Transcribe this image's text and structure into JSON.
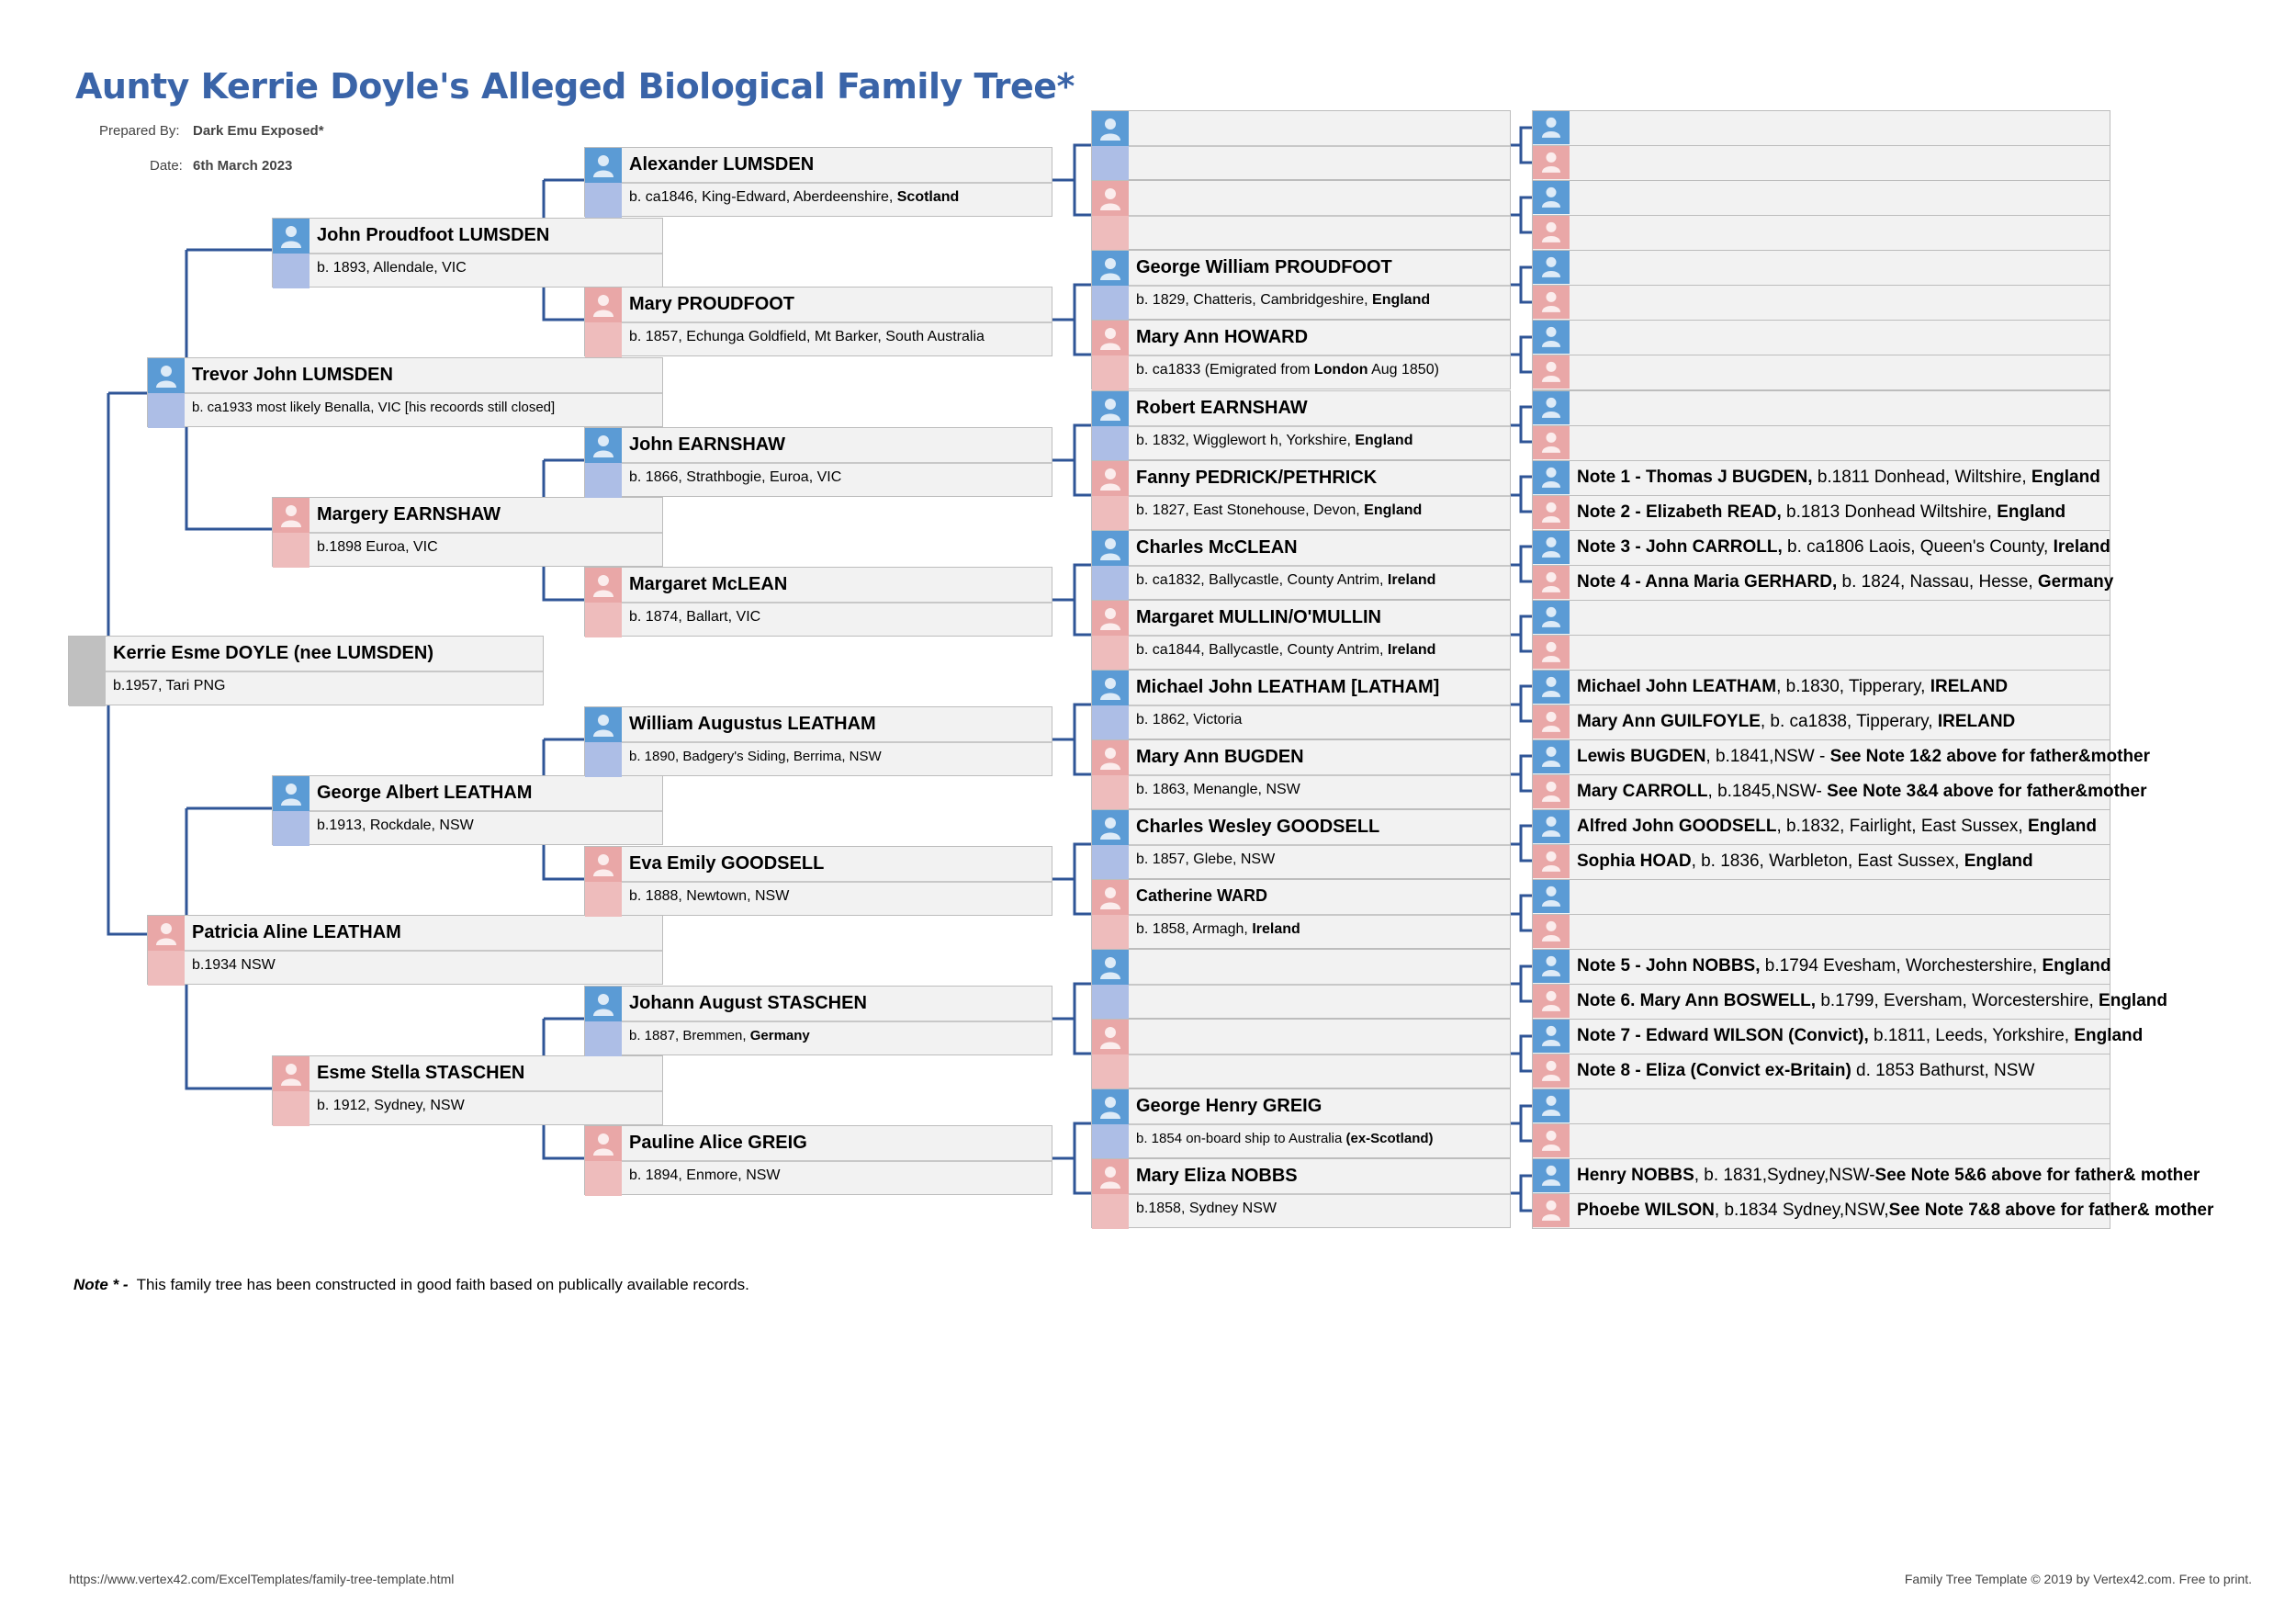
{
  "title": "Aunty Kerrie Doyle's Alleged Biological Family Tree*",
  "prepared_by_label": "Prepared By:",
  "prepared_by": "Dark Emu Exposed*",
  "date_label": "Date:",
  "date": "6th March 2023",
  "people": {
    "kerrie": {
      "name": "Kerrie Esme DOYLE (nee LUMSDEN)",
      "birth": "b.1957, Tari PNG"
    },
    "trevor": {
      "name": "Trevor John LUMSDEN",
      "birth": "b. ca1933 most likely Benalla, VIC [his recoords still closed]"
    },
    "patricia": {
      "name": "Patricia Aline LEATHAM",
      "birth": "b.1934 NSW"
    },
    "john_pl": {
      "name": "John Proudfoot LUMSDEN",
      "birth": "b. 1893, Allendale, VIC"
    },
    "margery": {
      "name": "Margery EARNSHAW",
      "birth": "b.1898 Euroa, VIC"
    },
    "george_al": {
      "name": "George Albert LEATHAM",
      "birth": "b.1913, Rockdale, NSW"
    },
    "esme": {
      "name": "Esme Stella STASCHEN",
      "birth": "b. 1912, Sydney, NSW"
    },
    "alexander": {
      "name": "Alexander LUMSDEN",
      "birth_pre": "b. ca1846, King-Edward, Aberdeenshire, ",
      "birth_bold": "Scotland"
    },
    "mary_p": {
      "name": "Mary PROUDFOOT",
      "birth": "b. 1857, Echunga Goldfield, Mt Barker, South Australia"
    },
    "john_e": {
      "name": "John EARNSHAW",
      "birth": "b. 1866, Strathbogie, Euroa, VIC"
    },
    "margaret_m": {
      "name": "Margaret McLEAN",
      "birth": "b. 1874, Ballart, VIC"
    },
    "william": {
      "name": "William Augustus LEATHAM",
      "birth": "b. 1890, Badgery's Siding, Berrima, NSW"
    },
    "eva": {
      "name": "Eva Emily GOODSELL",
      "birth": "b. 1888, Newtown, NSW"
    },
    "johann": {
      "name": "Johann August STASCHEN",
      "birth_pre": "b. 1887, Bremmen, ",
      "birth_bold": "Germany"
    },
    "pauline": {
      "name": "Pauline Alice GREIG",
      "birth": "b. 1894, Enmore, NSW"
    },
    "george_wp": {
      "name": "George William PROUDFOOT",
      "birth_pre": "b. 1829, Chatteris, Cambridgeshire, ",
      "birth_bold": "England"
    },
    "mary_ah": {
      "name": "Mary Ann HOWARD",
      "birth_pre": "b. ca1833 (Emigrated from ",
      "birth_bold": "London",
      "birth_post": " Aug 1850)"
    },
    "robert": {
      "name": "Robert EARNSHAW",
      "birth_pre": "b. 1832, Wigglewort h, Yorkshire, ",
      "birth_bold": "England"
    },
    "fanny": {
      "name": "Fanny PEDRICK/PETHRICK",
      "birth_pre": "b. 1827, East Stonehouse, Devon, ",
      "birth_bold": "England"
    },
    "charles_m": {
      "name": "Charles McCLEAN",
      "birth_pre": "b. ca1832, Ballycastle, County Antrim, ",
      "birth_bold": "Ireland"
    },
    "margaret_mu": {
      "name": "Margaret MULLIN/O'MULLIN",
      "birth_pre": "b. ca1844, Ballycastle, County Antrim, ",
      "birth_bold": "Ireland"
    },
    "michael": {
      "name": "Michael John LEATHAM [LATHAM]",
      "birth": "b. 1862, Victoria"
    },
    "mary_ab": {
      "name": "Mary Ann BUGDEN",
      "birth": "b. 1863, Menangle, NSW"
    },
    "charles_wg": {
      "name": "Charles Wesley  GOODSELL",
      "birth": "b. 1857, Glebe, NSW"
    },
    "catherine": {
      "name": "Catherine WARD",
      "birth_pre": "b. 1858, Armagh, ",
      "birth_bold": "Ireland"
    },
    "george_hg": {
      "name": "George Henry GREIG",
      "birth_pre": "b. 1854 on-board ship to Australia ",
      "birth_bold": "(ex-Scotland)"
    },
    "mary_en": {
      "name": "Mary Eliza NOBBS",
      "birth": "b.1858, Sydney NSW"
    }
  },
  "notes": {
    "n1": {
      "bold": "Note 1 - Thomas J BUGDEN,",
      "text": " b.1811 Donhead, Wiltshire, ",
      "bold2": "England"
    },
    "n2": {
      "bold": "Note 2 - Elizabeth READ,",
      "text": " b.1813 Donhead Wiltshire, ",
      "bold2": "England"
    },
    "n3": {
      "bold": "Note 3 - John CARROLL,",
      "text": " b. ca1806 Laois, Queen's County, ",
      "bold2": "Ireland"
    },
    "n4": {
      "bold": "Note 4 - Anna Maria GERHARD,",
      "text": " b. 1824, Nassau, Hesse, ",
      "bold2": "Germany"
    },
    "mjl": {
      "bold": "Michael John LEATHAM",
      "text": ", b.1830, Tipperary, ",
      "bold2": "IRELAND"
    },
    "mag": {
      "bold": "Mary Ann GUILFOYLE",
      "text": ", b. ca1838, Tipperary, ",
      "bold2": "IRELAND"
    },
    "lb": {
      "bold": "Lewis BUGDEN",
      "text": ", b.1841,NSW - ",
      "bold2": "See Note 1&2 above for father&mother"
    },
    "mc": {
      "bold": "Mary CARROLL",
      "text": ", b.1845,NSW- ",
      "bold2": "See Note 3&4 above for father&mother"
    },
    "ajg": {
      "bold": "Alfred John GOODSELL",
      "text": ", b.1832, Fairlight, East Sussex, ",
      "bold2": "England"
    },
    "sh": {
      "bold": "Sophia HOAD",
      "text": ", b. 1836, Warbleton, East Sussex, ",
      "bold2": "England"
    },
    "n5": {
      "bold": "Note 5 - John NOBBS,",
      "text": " b.1794 Evesham, Worchestershire, ",
      "bold2": "England"
    },
    "n6": {
      "bold": "Note 6. Mary Ann BOSWELL,",
      "text": " b.1799, Eversham, Worcestershire, ",
      "bold2": "England"
    },
    "n7": {
      "bold": "Note 7 - Edward WILSON (Convict),",
      "text": " b.1811, Leeds, Yorkshire, ",
      "bold2": "England"
    },
    "n8": {
      "bold": "Note 8 - Eliza (Convict ex-Britain)",
      "text": " d. 1853 Bathurst, NSW",
      "bold2": ""
    },
    "hn": {
      "bold": "Henry NOBBS",
      "text": ", b. 1831,Sydney,NSW-",
      "bold2": "See Note 5&6 above for father& mother"
    },
    "pw": {
      "bold": "Phoebe WILSON",
      "text": ", b.1834 Sydney,NSW,",
      "bold2": "See Note 7&8 above for father& mother"
    }
  },
  "footer_note_label": "Note * -",
  "footer_note": "This family tree has been constructed in good faith based on publically available records.",
  "footer_left": "https://www.vertex42.com/ExcelTemplates/family-tree-template.html",
  "footer_right": "Family Tree Template © 2019 by Vertex42.com. Free to print."
}
